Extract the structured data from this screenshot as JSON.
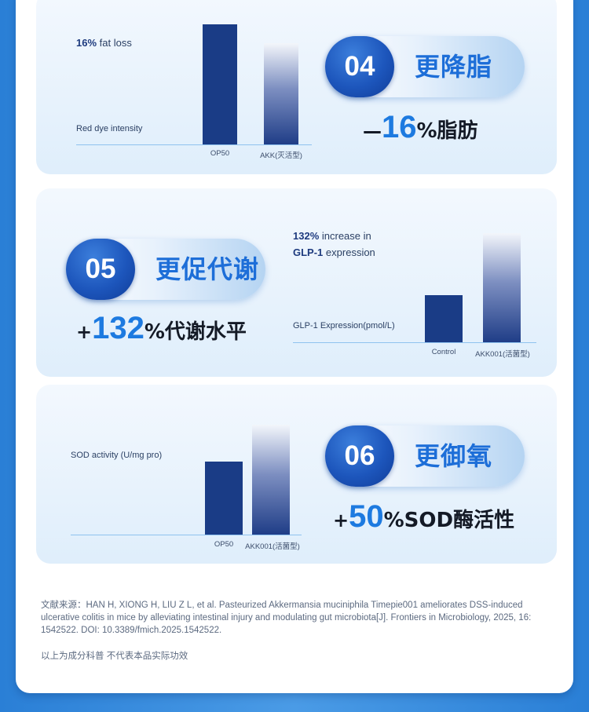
{
  "sections": {
    "fat": {
      "number": "04",
      "title": "更降脂",
      "stat_prefix": "—",
      "stat_value": "16",
      "stat_suffix": "%脂肪",
      "legend_value": "16%",
      "legend_text": "fat loss",
      "ylabel": "Red dye intensity",
      "chart_data": {
        "type": "bar",
        "categories": [
          "OP50",
          "AKK(灭活型)"
        ],
        "values": [
          100,
          84
        ],
        "legend": "16% fat loss",
        "ylabel": "Red dye intensity"
      }
    },
    "metabolism": {
      "number": "05",
      "title": "更促代谢",
      "stat_prefix": "+",
      "stat_value": "132",
      "stat_suffix": "%代谢水平",
      "legend_value": "132%",
      "legend_text_1": "increase in",
      "legend_value_2": "GLP-1",
      "legend_text_2": "expression",
      "ylabel": "GLP-1 Expression(pmol/L)",
      "chart_data": {
        "type": "bar",
        "categories": [
          "Control",
          "AKK001(活菌型)"
        ],
        "values": [
          100,
          232
        ],
        "legend": "132% increase in GLP-1 expression",
        "ylabel": "GLP-1 Expression(pmol/L)"
      }
    },
    "sod": {
      "number": "06",
      "title": "更御氧",
      "stat_prefix": "+",
      "stat_value": "50",
      "stat_suffix": "%SOD酶活性",
      "ylabel": "SOD activity (U/mg pro)",
      "chart_data": {
        "type": "bar",
        "categories": [
          "OP50",
          "AKK001(活菌型)"
        ],
        "values": [
          100,
          150
        ],
        "ylabel": "SOD activity (U/mg pro)"
      }
    }
  },
  "reference": "文献来源：HAN H, XIONG H, LIU Z L, et al. Pasteurized Akkermansia muciniphila Timepie001 ameliorates DSS-induced ulcerative colitis in mice by alleviating intestinal injury and modulating gut microbiota[J]. Frontiers in Microbiology, 2025, 16: 1542522. DOI: 10.3389/fmich.2025.1542522.",
  "disclaimer": "以上为成分科普 不代表本品实际功效"
}
